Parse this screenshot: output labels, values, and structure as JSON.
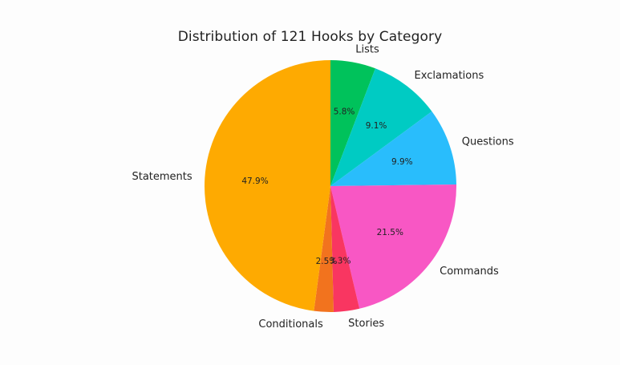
{
  "chart_data": {
    "type": "pie",
    "title": "Distribution of 121 Hooks by Category",
    "slices": [
      {
        "label": "Lists",
        "value": 5.8,
        "pct_label": "5.8%",
        "color": "#00c25b"
      },
      {
        "label": "Exclamations",
        "value": 9.1,
        "pct_label": "9.1%",
        "color": "#00cbc3"
      },
      {
        "label": "Questions",
        "value": 9.9,
        "pct_label": "9.9%",
        "color": "#29bdfc"
      },
      {
        "label": "Commands",
        "value": 21.5,
        "pct_label": "21.5%",
        "color": "#f857c4"
      },
      {
        "label": "Stories",
        "value": 3.3,
        "pct_label": "3.3%",
        "color": "#f93661"
      },
      {
        "label": "Conditionals",
        "value": 2.5,
        "pct_label": "2.5%",
        "color": "#f2731e"
      },
      {
        "label": "Statements",
        "value": 47.9,
        "pct_label": "47.9%",
        "color": "#feaa01"
      }
    ],
    "start_angle": "top",
    "direction": "clockwise",
    "legend": "none"
  }
}
